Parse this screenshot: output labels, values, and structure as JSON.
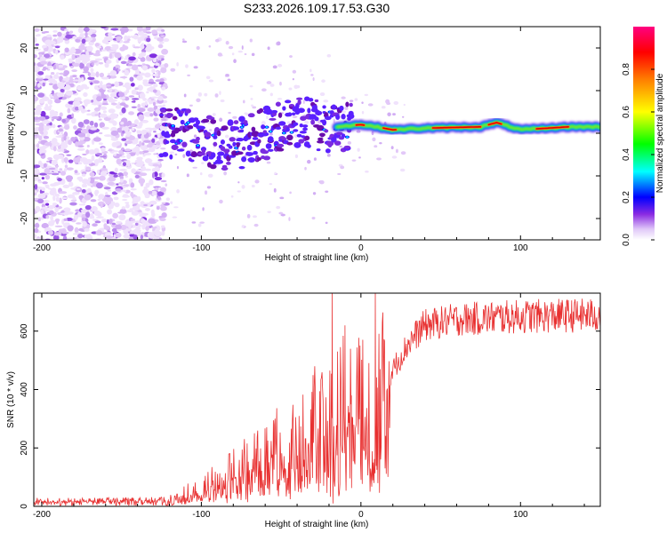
{
  "title": "S233.2026.109.17.53.G30",
  "chart_data": [
    {
      "type": "heatmap",
      "name": "spectrogram",
      "xlabel": "Height of straight line (km)",
      "ylabel": "Frequency (Hz)",
      "xlim": [
        -205,
        150
      ],
      "ylim": [
        -25,
        25
      ],
      "xticks": [
        -200,
        -100,
        0,
        100
      ],
      "yticks": [
        -20,
        -10,
        0,
        10,
        20
      ],
      "colorbar": {
        "label": "Normalized spectral amplitude",
        "range": [
          0,
          1
        ],
        "ticks": [
          0.0,
          0.2,
          0.4,
          0.6,
          0.8
        ],
        "tick_labels": [
          "0.0",
          "0.2",
          "0.4",
          "0.6",
          "0.8"
        ]
      },
      "ridge": [
        {
          "x": -120,
          "y": 0.5
        },
        {
          "x": -100,
          "y": -1.5
        },
        {
          "x": -80,
          "y": -3
        },
        {
          "x": -60,
          "y": 0
        },
        {
          "x": -40,
          "y": 3
        },
        {
          "x": -20,
          "y": 1.5
        },
        {
          "x": 0,
          "y": 2
        },
        {
          "x": 10,
          "y": 1.5
        },
        {
          "x": 20,
          "y": 0.8
        },
        {
          "x": 40,
          "y": 1.2
        },
        {
          "x": 75,
          "y": 1.5
        },
        {
          "x": 85,
          "y": 2.5
        },
        {
          "x": 100,
          "y": 0.8
        },
        {
          "x": 130,
          "y": 1.5
        },
        {
          "x": 150,
          "y": 1.5
        }
      ]
    },
    {
      "type": "line",
      "name": "snr",
      "xlabel": "Height of straight line (km)",
      "ylabel": "SNR (10 * v/v)",
      "xlim": [
        -205,
        150
      ],
      "ylim": [
        0,
        730
      ],
      "xticks": [
        -200,
        -100,
        0,
        100
      ],
      "yticks": [
        0,
        200,
        400,
        600
      ],
      "color": "#e83030",
      "envelope": [
        {
          "x": -205,
          "y": 20
        },
        {
          "x": -120,
          "y": 22
        },
        {
          "x": -100,
          "y": 60
        },
        {
          "x": -80,
          "y": 110
        },
        {
          "x": -60,
          "y": 170
        },
        {
          "x": -40,
          "y": 230
        },
        {
          "x": -20,
          "y": 300
        },
        {
          "x": -10,
          "y": 330
        },
        {
          "x": 0,
          "y": 330
        },
        {
          "x": 8,
          "y": 260
        },
        {
          "x": 15,
          "y": 410
        },
        {
          "x": 20,
          "y": 470
        },
        {
          "x": 30,
          "y": 560
        },
        {
          "x": 40,
          "y": 620
        },
        {
          "x": 60,
          "y": 640
        },
        {
          "x": 100,
          "y": 650
        },
        {
          "x": 150,
          "y": 655
        }
      ]
    }
  ]
}
